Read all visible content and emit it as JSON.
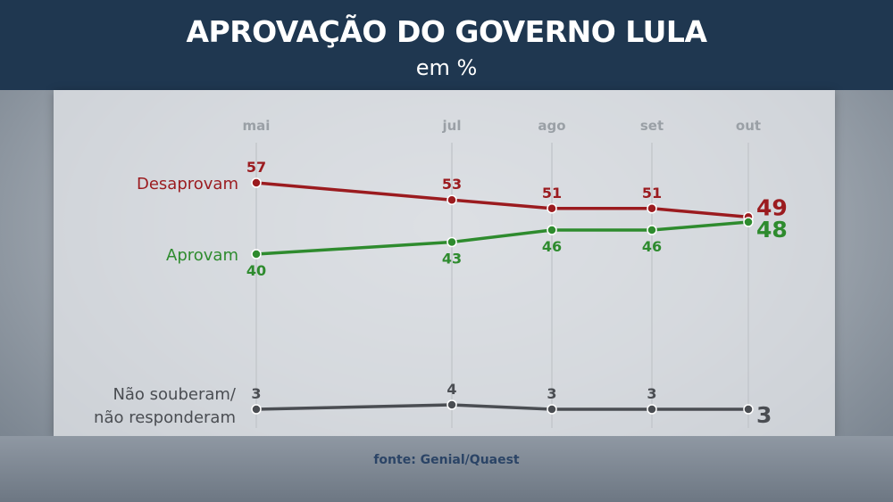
{
  "header": {
    "title": "APROVAÇÃO DO GOVERNO LULA",
    "subtitle": "em %"
  },
  "source": "fonte: Genial/Quaest",
  "colors": {
    "desaprovam": "#9b1b1f",
    "aprovam": "#2e8b2e",
    "nao_souberam": "#4a4d52",
    "header_bg": "#1f3750"
  },
  "chart_data": {
    "type": "line",
    "title": "APROVAÇÃO DO GOVERNO LULA",
    "subtitle": "em %",
    "categories": [
      "mai",
      "jul",
      "ago",
      "set",
      "out"
    ],
    "ylim": [
      0,
      60
    ],
    "grid": "vertical",
    "series": [
      {
        "name": "Desaprovam",
        "key": "desaprovam",
        "values": [
          57,
          53,
          51,
          51,
          49
        ]
      },
      {
        "name": "Aprovam",
        "key": "aprovam",
        "values": [
          40,
          43,
          46,
          46,
          48
        ]
      },
      {
        "name_lines": [
          "Não souberam/",
          "não responderam"
        ],
        "name": "Não souberam/ não responderam",
        "key": "nao_souberam",
        "values": [
          3,
          4,
          3,
          3,
          3
        ]
      }
    ]
  }
}
